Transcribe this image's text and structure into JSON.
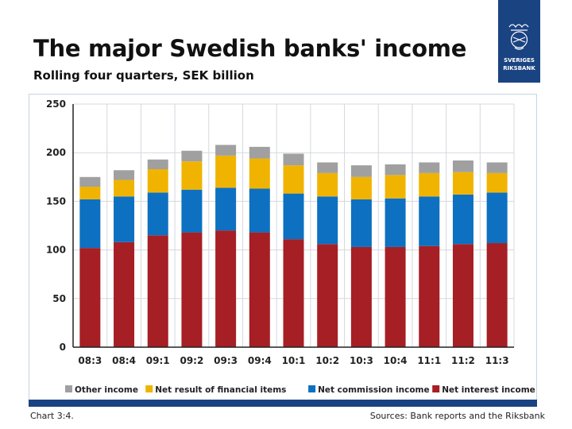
{
  "header": {
    "title": "The major Swedish banks' income",
    "subtitle": "Rolling four quarters, SEK billion"
  },
  "logo": {
    "line1": "SVERIGES",
    "line2": "RIKSBANK"
  },
  "footer": {
    "chart_label": "Chart 3:4.",
    "source": "Sources: Bank reports and the Riksbank"
  },
  "colors": {
    "accent": "#1a4382",
    "net_interest": "#a51f24",
    "net_commission": "#0e70c0",
    "financial_items": "#f0b400",
    "other": "#a0a0a0"
  },
  "chart_data": {
    "type": "bar",
    "stacked": true,
    "categories": [
      "08:3",
      "08:4",
      "09:1",
      "09:2",
      "09:3",
      "09:4",
      "10:1",
      "10:2",
      "10:3",
      "10:4",
      "11:1",
      "11:2",
      "11:3"
    ],
    "series": [
      {
        "name": "Net interest income",
        "color": "#a51f24",
        "values": [
          102,
          108,
          115,
          118,
          120,
          118,
          111,
          106,
          103,
          103,
          104,
          106,
          107
        ]
      },
      {
        "name": "Net commission income",
        "color": "#0e70c0",
        "values": [
          50,
          47,
          44,
          44,
          44,
          45,
          47,
          49,
          49,
          50,
          51,
          51,
          52
        ]
      },
      {
        "name": "Net result of financial items",
        "color": "#f0b400",
        "values": [
          13,
          17,
          24,
          29,
          33,
          31,
          29,
          24,
          23,
          24,
          24,
          23,
          20
        ]
      },
      {
        "name": "Other income",
        "color": "#a0a0a0",
        "values": [
          10,
          10,
          10,
          11,
          11,
          12,
          12,
          11,
          12,
          11,
          11,
          12,
          11
        ]
      }
    ],
    "legend_order": [
      "Other income",
      "Net result of financial items",
      "Net commission income",
      "Net interest income"
    ],
    "legend_position": "bottom",
    "title": "",
    "xlabel": "",
    "ylabel": "",
    "ylim": [
      0,
      250
    ],
    "yticks": [
      0,
      50,
      100,
      150,
      200,
      250
    ],
    "grid": true
  }
}
